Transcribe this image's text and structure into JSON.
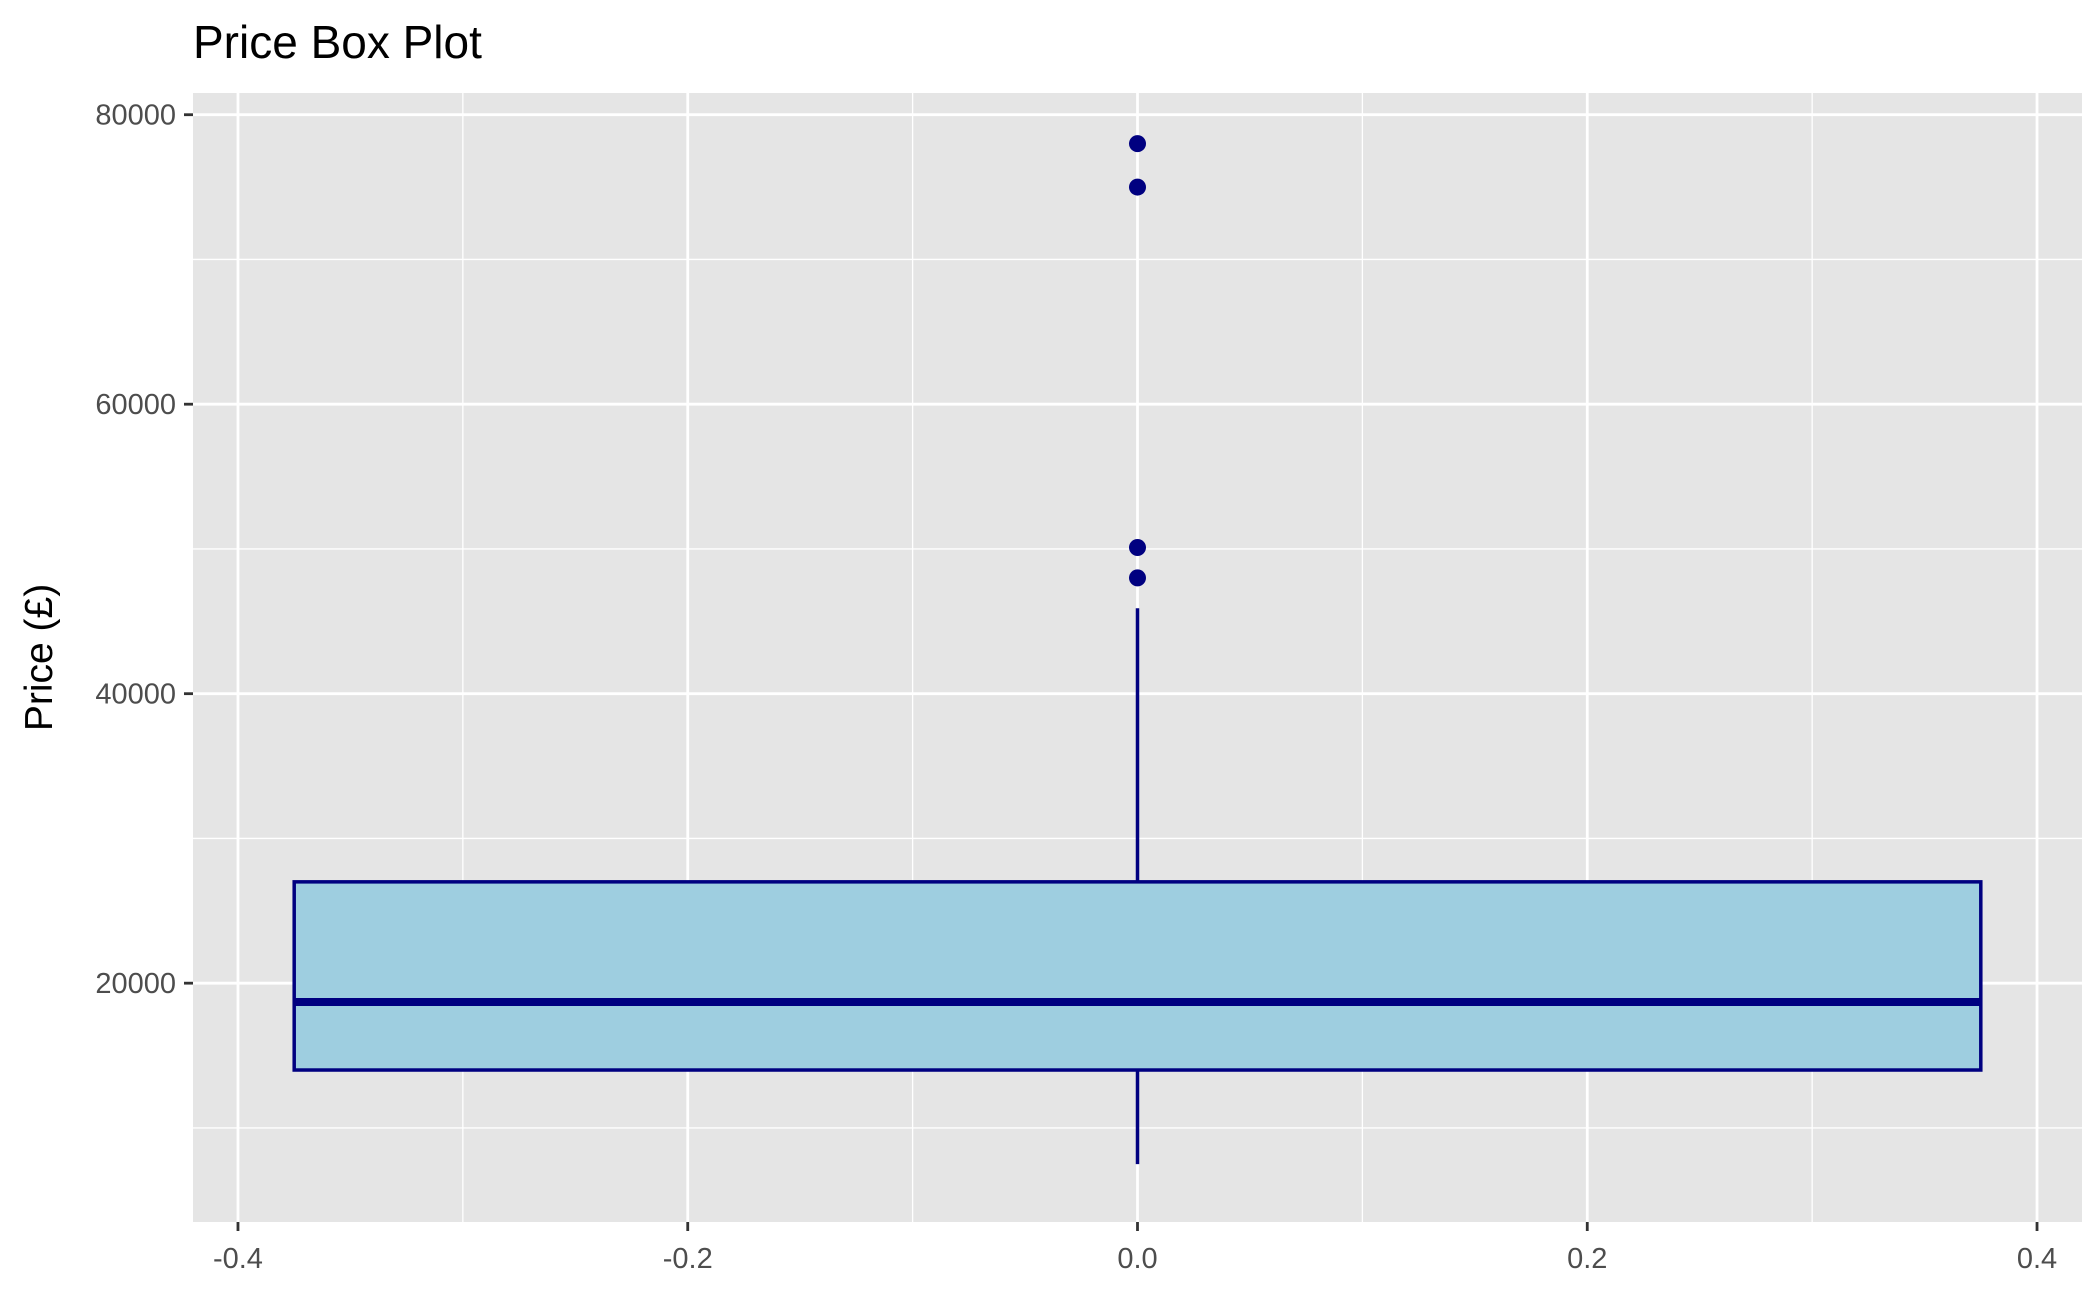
{
  "chart_data": {
    "type": "boxplot",
    "title": "Price Box Plot",
    "xlabel": "",
    "ylabel": "Price (£)",
    "xlim": [
      -0.42,
      0.42
    ],
    "ylim": [
      3500,
      81500
    ],
    "x_ticks": [
      -0.4,
      -0.2,
      0.0,
      0.2,
      0.4
    ],
    "x_tick_labels": [
      "-0.4",
      "-0.2",
      "0.0",
      "0.2",
      "0.4"
    ],
    "y_ticks": [
      20000,
      40000,
      60000,
      80000
    ],
    "y_tick_labels": [
      "20000",
      "40000",
      "60000",
      "80000"
    ],
    "grid": true,
    "legend": "none",
    "box": {
      "x_center": 0.0,
      "width": 0.75,
      "q1": 14000,
      "median": 18700,
      "q3": 27000,
      "whisker_low": 7500,
      "whisker_high": 45900,
      "outliers": [
        48000,
        50100,
        75000,
        78000
      ]
    },
    "colors": {
      "panel_background": "#e5e5e5",
      "grid_line": "#ffffff",
      "box_fill": "#9ecee0",
      "box_outline": "#000080",
      "outlier_point": "#000080"
    }
  }
}
